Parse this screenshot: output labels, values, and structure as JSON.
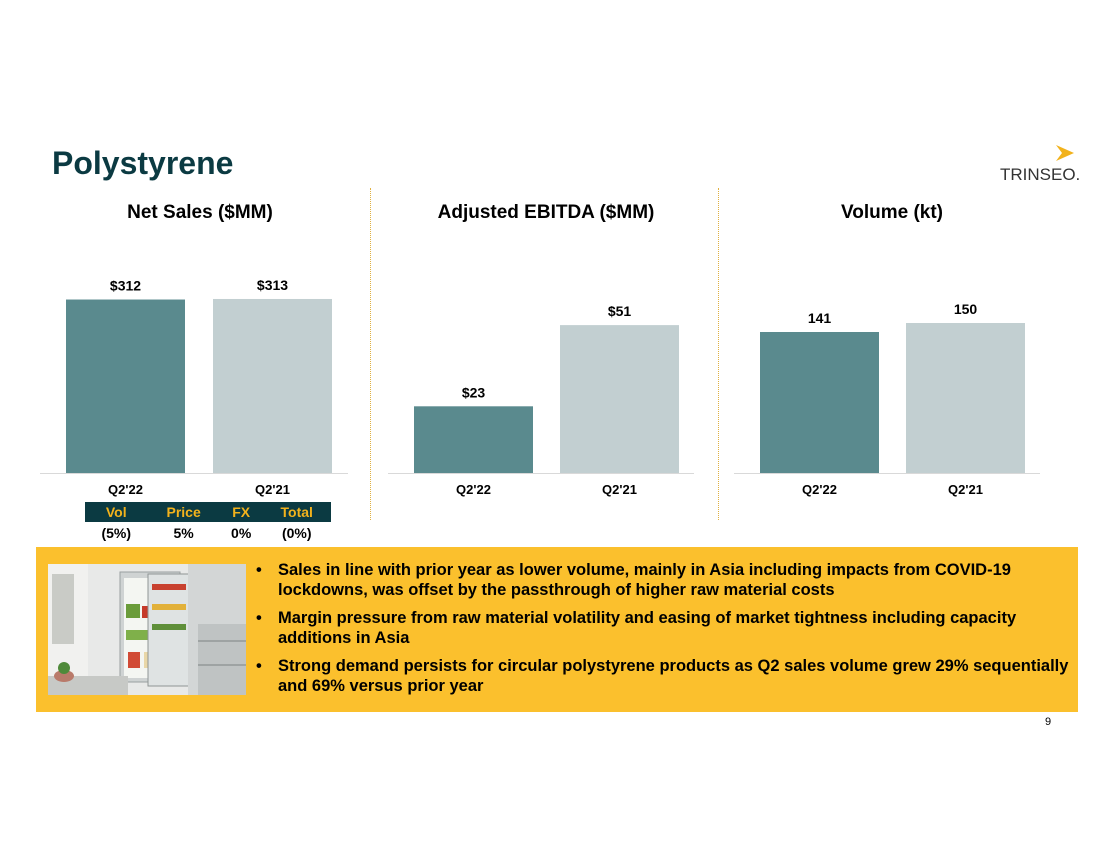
{
  "slide": {
    "title": "Polystyrene",
    "logo_text": "TRINSEO.",
    "page_number": "9"
  },
  "colors": {
    "title": "#0b3a42",
    "bar_current": "#5a8a8e",
    "bar_prior": "#c2cfd1",
    "banner": "#fbc02d",
    "logo_mark": "#f2b21c",
    "table_header_bg": "#0b3a42",
    "table_header_text": "#f2b21c"
  },
  "chart_data": [
    {
      "type": "bar",
      "title": "Net Sales ($MM)",
      "categories": [
        "Q2'22",
        "Q2'21"
      ],
      "values": [
        312,
        313
      ],
      "labels": [
        "$312",
        "$313"
      ]
    },
    {
      "type": "bar",
      "title": "Adjusted EBITDA ($MM)",
      "categories": [
        "Q2'22",
        "Q2'21"
      ],
      "values": [
        23,
        51
      ],
      "labels": [
        "$23",
        "$51"
      ]
    },
    {
      "type": "bar",
      "title": "Volume (kt)",
      "categories": [
        "Q2'22",
        "Q2'21"
      ],
      "values": [
        141,
        150
      ],
      "labels": [
        "141",
        "150"
      ]
    }
  ],
  "bridge_table": {
    "headers": [
      "Vol",
      "Price",
      "FX",
      "Total"
    ],
    "values": [
      "(5%)",
      "5%",
      "0%",
      "(0%)"
    ]
  },
  "bullets": [
    "Sales in line with prior year as lower volume, mainly in Asia including impacts from COVID-19 lockdowns, was offset by the passthrough of higher raw material costs",
    "Margin pressure from raw material volatility and easing of market tightness including capacity additions in Asia",
    "Strong demand persists for circular polystyrene products as Q2 sales volume grew 29% sequentially and 69% versus prior year"
  ],
  "bullet_glyph": "•"
}
